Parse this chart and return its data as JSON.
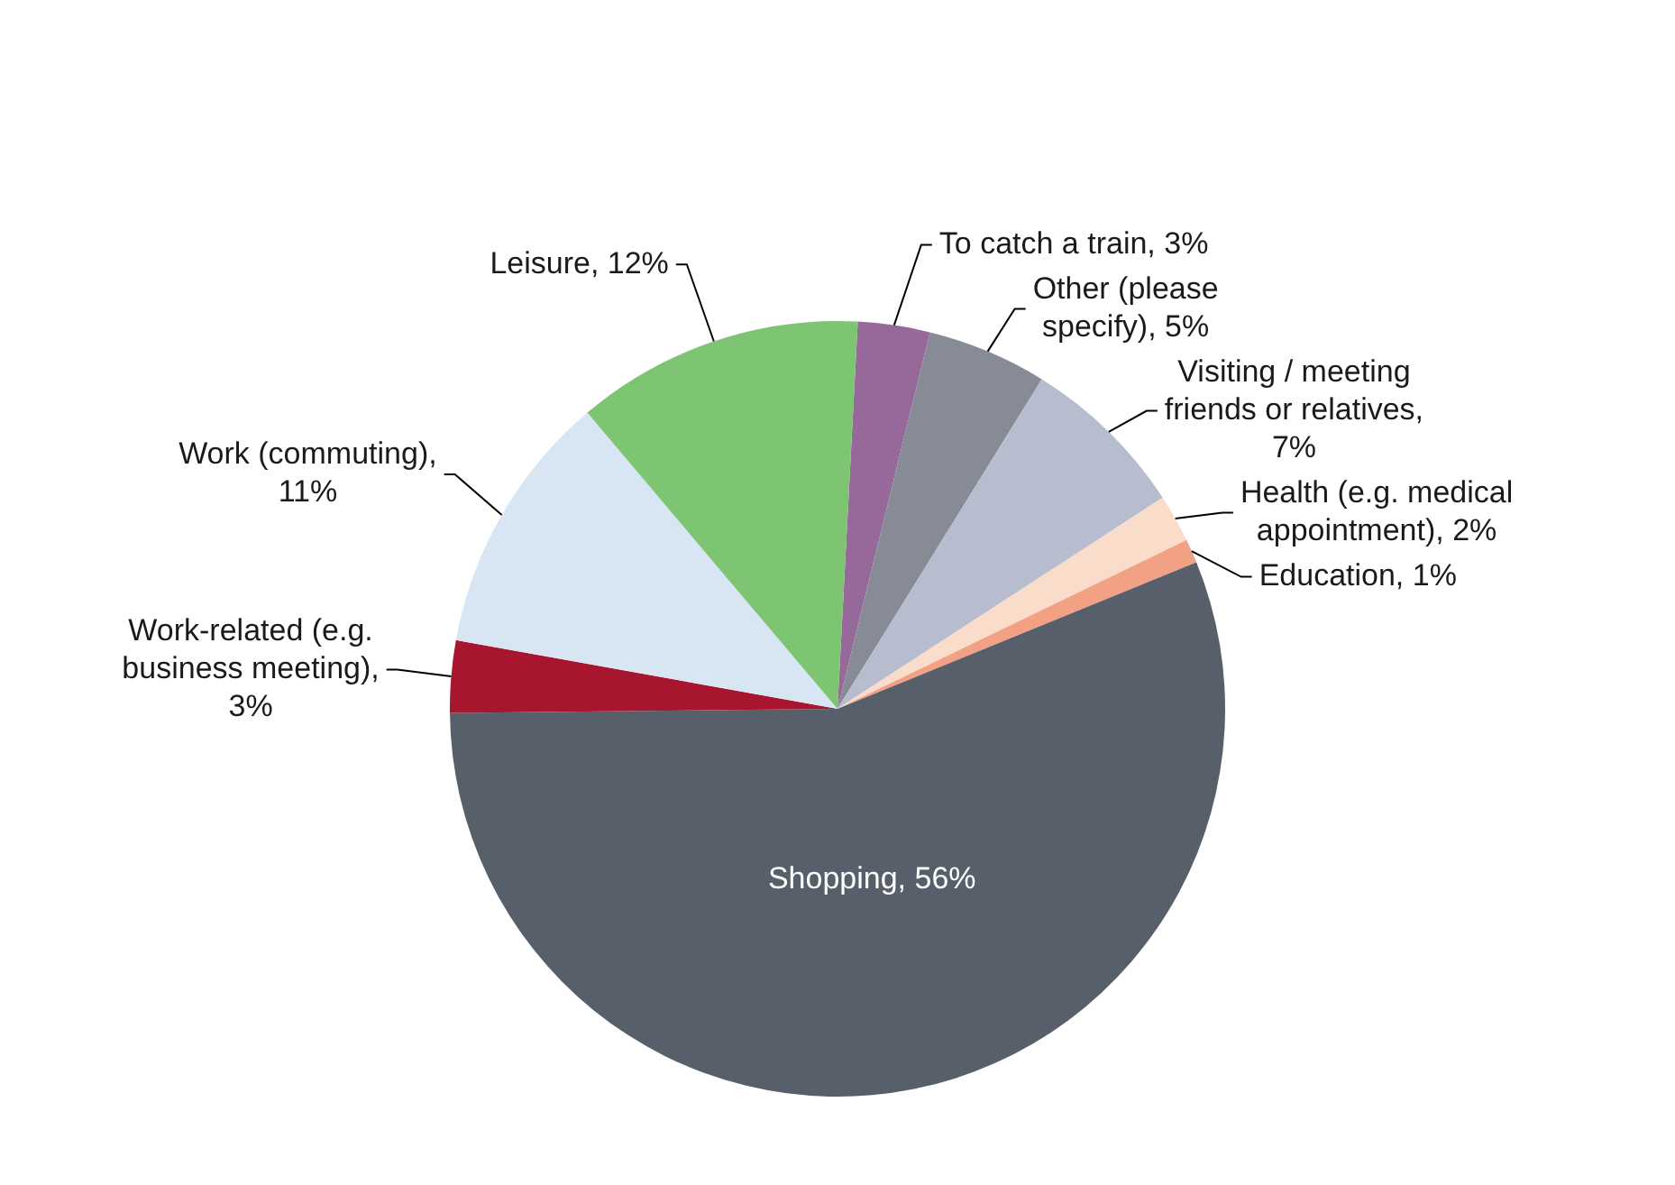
{
  "chart_data": {
    "type": "pie",
    "categories": [
      "To catch a train, 3%",
      "Other (please specify), 5%",
      "Visiting / meeting friends or relatives, 7%",
      "Health (e.g. medical appointment), 2%",
      "Education, 1%",
      "Shopping, 56%",
      "Work-related (e.g. business meeting), 3%",
      "Work (commuting), 11%",
      "Leisure, 12%"
    ],
    "values": [
      3,
      5,
      7,
      2,
      1,
      56,
      3,
      11,
      12
    ],
    "colors": [
      "#96699a",
      "#868b96",
      "#b7bccf",
      "#fadccb",
      "#f3a184",
      "#575f6b",
      "#a8152f",
      "#d7e6f2",
      "#7dc473"
    ]
  }
}
